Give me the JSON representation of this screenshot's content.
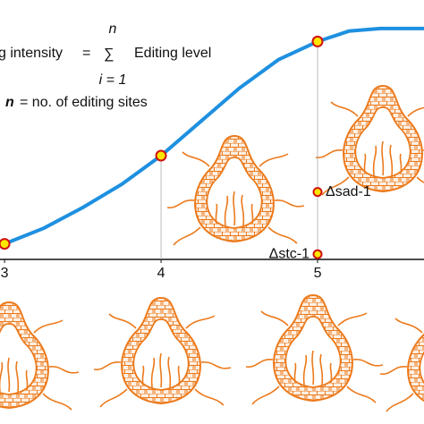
{
  "chart_data": {
    "type": "line",
    "formula": {
      "lhs": "g intensity",
      "equals": "=",
      "sigma": "∑",
      "upper": "n",
      "lower": "i = 1",
      "rhs": "Editing level"
    },
    "note": {
      "symbol": "n",
      "text": "= no. of editing sites"
    },
    "xlim": [
      2.971,
      5.68
    ],
    "ylim": [
      0,
      100
    ],
    "xticks": [
      3,
      4,
      5
    ],
    "series": [
      {
        "color": "#1e90e0",
        "x": [
          3,
          3.25,
          3.5,
          3.75,
          4,
          4.25,
          4.5,
          4.75,
          5,
          5.2,
          5.4,
          5.68
        ],
        "values": [
          6,
          12,
          20,
          29,
          40,
          53,
          66,
          77,
          84,
          88,
          89,
          89
        ]
      },
      {
        "color": "#ffe600",
        "x": [
          3,
          4,
          5
        ],
        "values": [
          6,
          40,
          84
        ]
      }
    ],
    "mutants": [
      {
        "name": "Δsad-1",
        "x": 5,
        "value": 26
      },
      {
        "name": "Δstc-1",
        "x": 5,
        "value": 2
      }
    ]
  }
}
